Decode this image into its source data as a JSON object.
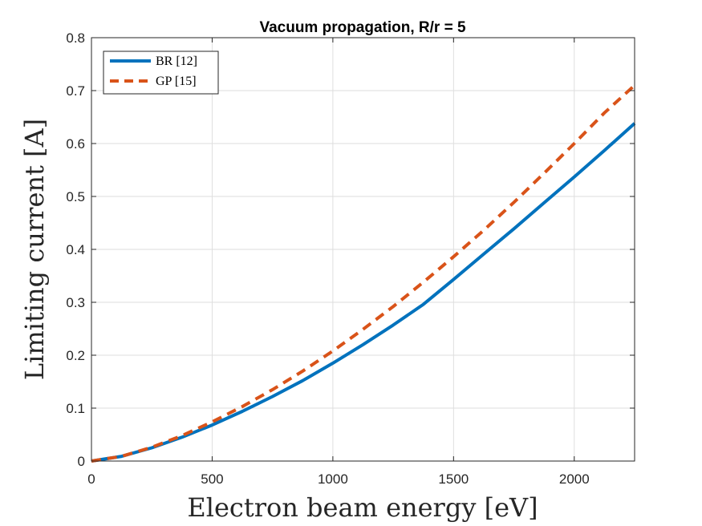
{
  "chart_data": {
    "type": "line",
    "title": "Vacuum propagation, R/r = 5",
    "xlabel": "Electron beam energy [eV]",
    "ylabel": "Limiting current [A]",
    "xlim": [
      0,
      2250
    ],
    "ylim": [
      0,
      0.8
    ],
    "xticks": [
      0,
      500,
      1000,
      1500,
      2000
    ],
    "xtick_labels": [
      "0",
      "500",
      "1000",
      "1500",
      "2000"
    ],
    "yticks": [
      0,
      0.1,
      0.2,
      0.3,
      0.4,
      0.5,
      0.6,
      0.7,
      0.8
    ],
    "ytick_labels": [
      "0",
      "0.1",
      "0.2",
      "0.3",
      "0.4",
      "0.5",
      "0.6",
      "0.7",
      "0.8"
    ],
    "grid": true,
    "legend_position": "top-left",
    "series": [
      {
        "name": "BR [12]",
        "style": "solid",
        "color": "#0072BD",
        "x": [
          0,
          125,
          250,
          375,
          500,
          625,
          750,
          875,
          1000,
          1125,
          1250,
          1375,
          1500,
          1625,
          1750,
          1875,
          2000,
          2125,
          2250
        ],
        "y": [
          0,
          0.009,
          0.025,
          0.045,
          0.068,
          0.094,
          0.122,
          0.152,
          0.185,
          0.22,
          0.257,
          0.296,
          0.343,
          0.391,
          0.439,
          0.488,
          0.537,
          0.587,
          0.638
        ]
      },
      {
        "name": "GP [15]",
        "style": "dashed",
        "color": "#D95319",
        "x": [
          0,
          125,
          250,
          375,
          500,
          625,
          750,
          875,
          1000,
          1125,
          1250,
          1375,
          1500,
          1625,
          1750,
          1875,
          2000,
          2125,
          2250
        ],
        "y": [
          0,
          0.009,
          0.026,
          0.048,
          0.074,
          0.103,
          0.135,
          0.17,
          0.208,
          0.249,
          0.292,
          0.338,
          0.386,
          0.436,
          0.489,
          0.544,
          0.6,
          0.658,
          0.71
        ]
      }
    ]
  }
}
